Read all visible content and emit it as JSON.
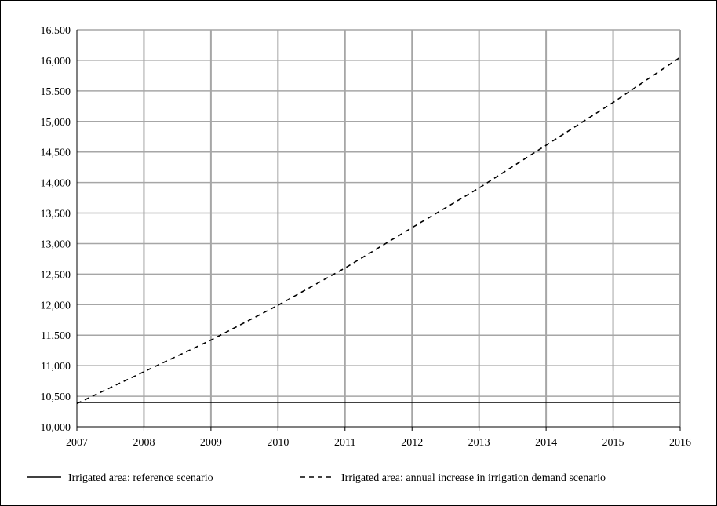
{
  "chart_data": {
    "type": "line",
    "title": "",
    "xlabel": "",
    "ylabel": "",
    "x": [
      2007,
      2008,
      2009,
      2010,
      2011,
      2012,
      2013,
      2014,
      2015,
      2016
    ],
    "x_tick_labels": [
      "2007",
      "2008",
      "2009",
      "2010",
      "2011",
      "2012",
      "2013",
      "2014",
      "2015",
      "2016"
    ],
    "ylim": [
      10000,
      16500
    ],
    "y_ticks": [
      10000,
      10500,
      11000,
      11500,
      12000,
      12500,
      13000,
      13500,
      14000,
      14500,
      15000,
      15500,
      16000,
      16500
    ],
    "y_tick_labels": [
      "10,000",
      "10,500",
      "11,000",
      "11,500",
      "12,000",
      "12,500",
      "13,000",
      "13,500",
      "14,000",
      "14,500",
      "15,000",
      "15,500",
      "16,000",
      "16,500"
    ],
    "grid": true,
    "legend_position": "bottom",
    "series": [
      {
        "name": "Irrigated area: reference scenario",
        "style": "solid",
        "color": "#000000",
        "values": [
          10400,
          10400,
          10400,
          10400,
          10400,
          10400,
          10400,
          10400,
          10400,
          10400
        ]
      },
      {
        "name": "Irrigated area: annual increase in irrigation demand scenario",
        "style": "dashed",
        "color": "#000000",
        "values": [
          10380,
          10900,
          11420,
          11990,
          12600,
          13260,
          13910,
          14610,
          15310,
          16050
        ]
      }
    ],
    "gridline_color": "#a6a6a6"
  }
}
